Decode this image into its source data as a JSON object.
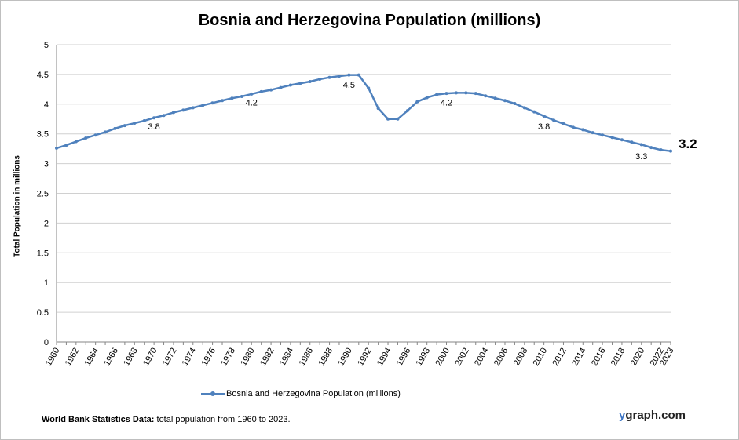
{
  "chart_data": {
    "type": "line",
    "title": "Bosnia and Herzegovina Population (millions)",
    "ylabel": "Total Population  in millions",
    "xlabel": "",
    "ylim": [
      0,
      5
    ],
    "yticks": [
      "0",
      "0.5",
      "1",
      "1.5",
      "2",
      "2.5",
      "3",
      "3.5",
      "4",
      "4.5",
      "5"
    ],
    "xticks": [
      "1960",
      "1962",
      "1964",
      "1966",
      "1968",
      "1970",
      "1972",
      "1974",
      "1976",
      "1978",
      "1980",
      "1982",
      "1984",
      "1986",
      "1988",
      "1990",
      "1992",
      "1994",
      "1996",
      "1998",
      "2000",
      "2002",
      "2004",
      "2006",
      "2008",
      "2010",
      "2012",
      "2014",
      "2016",
      "2018",
      "2020",
      "2022",
      "2023"
    ],
    "grid": true,
    "legend_position": "bottom",
    "series": [
      {
        "name": "Bosnia and Herzegovina Population (millions)",
        "color": "#4f81bd",
        "x": [
          1960,
          1961,
          1962,
          1963,
          1964,
          1965,
          1966,
          1967,
          1968,
          1969,
          1970,
          1971,
          1972,
          1973,
          1974,
          1975,
          1976,
          1977,
          1978,
          1979,
          1980,
          1981,
          1982,
          1983,
          1984,
          1985,
          1986,
          1987,
          1988,
          1989,
          1990,
          1991,
          1992,
          1993,
          1994,
          1995,
          1996,
          1997,
          1998,
          1999,
          2000,
          2001,
          2002,
          2003,
          2004,
          2005,
          2006,
          2007,
          2008,
          2009,
          2010,
          2011,
          2012,
          2013,
          2014,
          2015,
          2016,
          2017,
          2018,
          2019,
          2020,
          2021,
          2022,
          2023
        ],
        "values": [
          3.26,
          3.31,
          3.37,
          3.43,
          3.48,
          3.53,
          3.59,
          3.64,
          3.68,
          3.72,
          3.77,
          3.81,
          3.86,
          3.9,
          3.94,
          3.98,
          4.02,
          4.06,
          4.1,
          4.13,
          4.17,
          4.21,
          4.24,
          4.28,
          4.32,
          4.35,
          4.38,
          4.42,
          4.45,
          4.47,
          4.49,
          4.49,
          4.27,
          3.93,
          3.75,
          3.75,
          3.89,
          4.04,
          4.11,
          4.16,
          4.18,
          4.19,
          4.19,
          4.18,
          4.14,
          4.1,
          4.06,
          4.01,
          3.94,
          3.87,
          3.8,
          3.73,
          3.67,
          3.61,
          3.57,
          3.52,
          3.48,
          3.44,
          3.4,
          3.36,
          3.32,
          3.27,
          3.23,
          3.21
        ]
      }
    ],
    "annotations": [
      {
        "year": 1970,
        "value": 3.8,
        "text": "3.8"
      },
      {
        "year": 1980,
        "value": 4.2,
        "text": "4.2"
      },
      {
        "year": 1990,
        "value": 4.5,
        "text": "4.5"
      },
      {
        "year": 2000,
        "value": 4.2,
        "text": "4.2"
      },
      {
        "year": 2010,
        "value": 3.8,
        "text": "3.8"
      },
      {
        "year": 2020,
        "value": 3.3,
        "text": "3.3"
      }
    ],
    "last_value_label": "3.2"
  },
  "footer": {
    "source_bold": "World Bank Statistics Data:",
    "source_text": " total population from 1960 to 2023.",
    "brand_prefix": "y",
    "brand_suffix": "graph.com"
  }
}
